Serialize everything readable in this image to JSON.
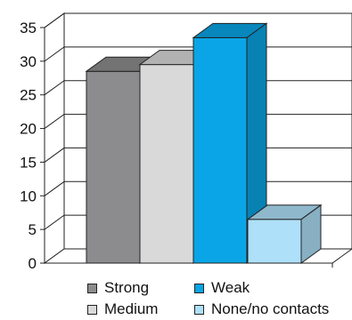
{
  "chart_data": {
    "type": "bar",
    "style": "3d-clustered",
    "categories": [
      ""
    ],
    "series": [
      {
        "name": "Strong",
        "values": [
          28.5
        ],
        "color": "#8c8c8e"
      },
      {
        "name": "Medium",
        "values": [
          29.5
        ],
        "color": "#d9d9da"
      },
      {
        "name": "Weak",
        "values": [
          33.5
        ],
        "color": "#0aa5e6"
      },
      {
        "name": "None/no contacts",
        "values": [
          6.5
        ],
        "color": "#aee0f9"
      }
    ],
    "y_ticks": [
      "0",
      "5",
      "10",
      "15",
      "20",
      "25",
      "30",
      "35"
    ],
    "ylim": [
      0,
      35
    ],
    "grid": true,
    "legend_position": "bottom",
    "title": "",
    "xlabel": "",
    "ylabel": ""
  }
}
